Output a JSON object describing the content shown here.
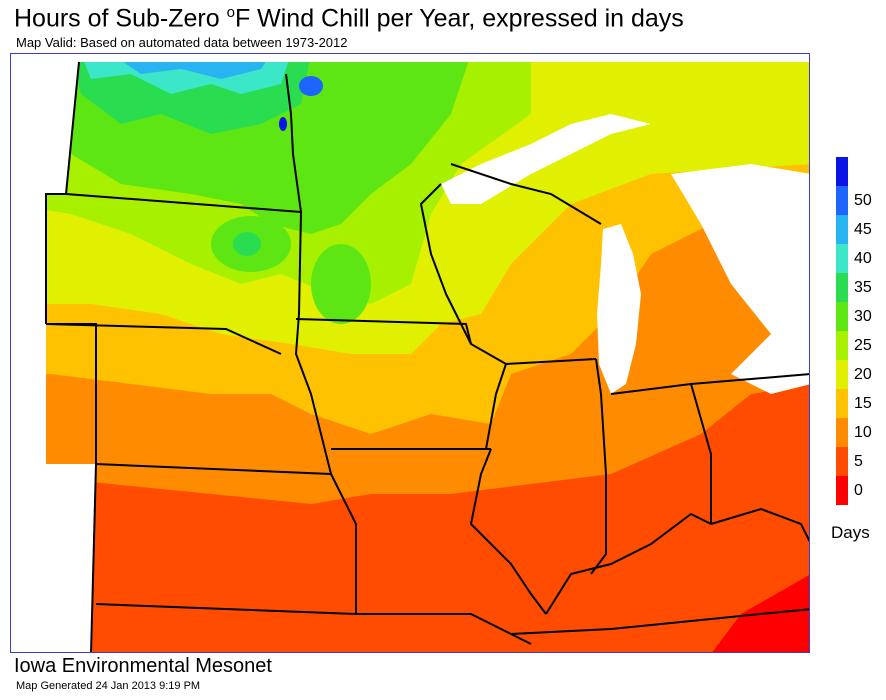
{
  "title_prefix": "Hours of Sub-Zero ",
  "title_degree": "o",
  "title_suffix": "F Wind Chill per Year, expressed in days",
  "subtitle": "Map Valid: Based on automated data between 1973-2012",
  "legend": {
    "unit": "Days",
    "levels": [
      {
        "label": "0",
        "color": "#ff0000"
      },
      {
        "label": "5",
        "color": "#ff4c00"
      },
      {
        "label": "10",
        "color": "#ff8c00"
      },
      {
        "label": "15",
        "color": "#ffc200"
      },
      {
        "label": "20",
        "color": "#e1f000"
      },
      {
        "label": "25",
        "color": "#a6f000"
      },
      {
        "label": "30",
        "color": "#5ee614"
      },
      {
        "label": "35",
        "color": "#2adc50"
      },
      {
        "label": "40",
        "color": "#3ce6c8"
      },
      {
        "label": "45",
        "color": "#28b4f0"
      },
      {
        "label": "50",
        "color": "#1e64ff"
      },
      {
        "label": "",
        "color": "#0a14e6"
      }
    ]
  },
  "colors": {
    "lake": "#ffffff",
    "border": "#000000",
    "frame": "#3c3cc8"
  },
  "footer": {
    "source": "Iowa Environmental Mesonet",
    "generated": "Map Generated 24 Jan 2013 9:19 PM"
  }
}
